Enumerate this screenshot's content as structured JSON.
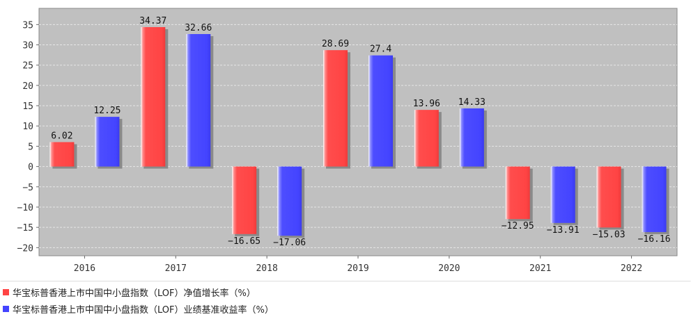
{
  "chart_data": {
    "type": "bar",
    "title": "",
    "categories": [
      "2016",
      "2017",
      "2018",
      "2019",
      "2020",
      "2021",
      "2022"
    ],
    "series": [
      {
        "name": "华宝标普香港上市中国中小盘指数（LOF）净值增长率（%）",
        "color": "#ff5555",
        "values": [
          6.02,
          34.37,
          -16.65,
          28.69,
          13.96,
          -12.95,
          -15.03
        ]
      },
      {
        "name": "华宝标普香港上市中国中小盘指数（LOF）业绩基准收益率（%）",
        "color": "#5555ff",
        "values": [
          12.25,
          32.66,
          -17.06,
          27.4,
          14.33,
          -13.91,
          -16.16
        ]
      }
    ],
    "ylim": [
      -22,
      39
    ],
    "yticks": [
      35,
      30,
      25,
      20,
      15,
      10,
      5,
      0,
      -5,
      -10,
      -15,
      -20
    ],
    "ytick_labels": [
      "35",
      "30",
      "25",
      "20",
      "15",
      "10",
      "5",
      "0",
      "−5",
      "−10",
      "−15",
      "−20"
    ],
    "grid": true,
    "legend": "bottom-left"
  },
  "colors": {
    "plot_background": "#c0c0c0",
    "series1": "#ff5555",
    "series2": "#5555ff"
  }
}
